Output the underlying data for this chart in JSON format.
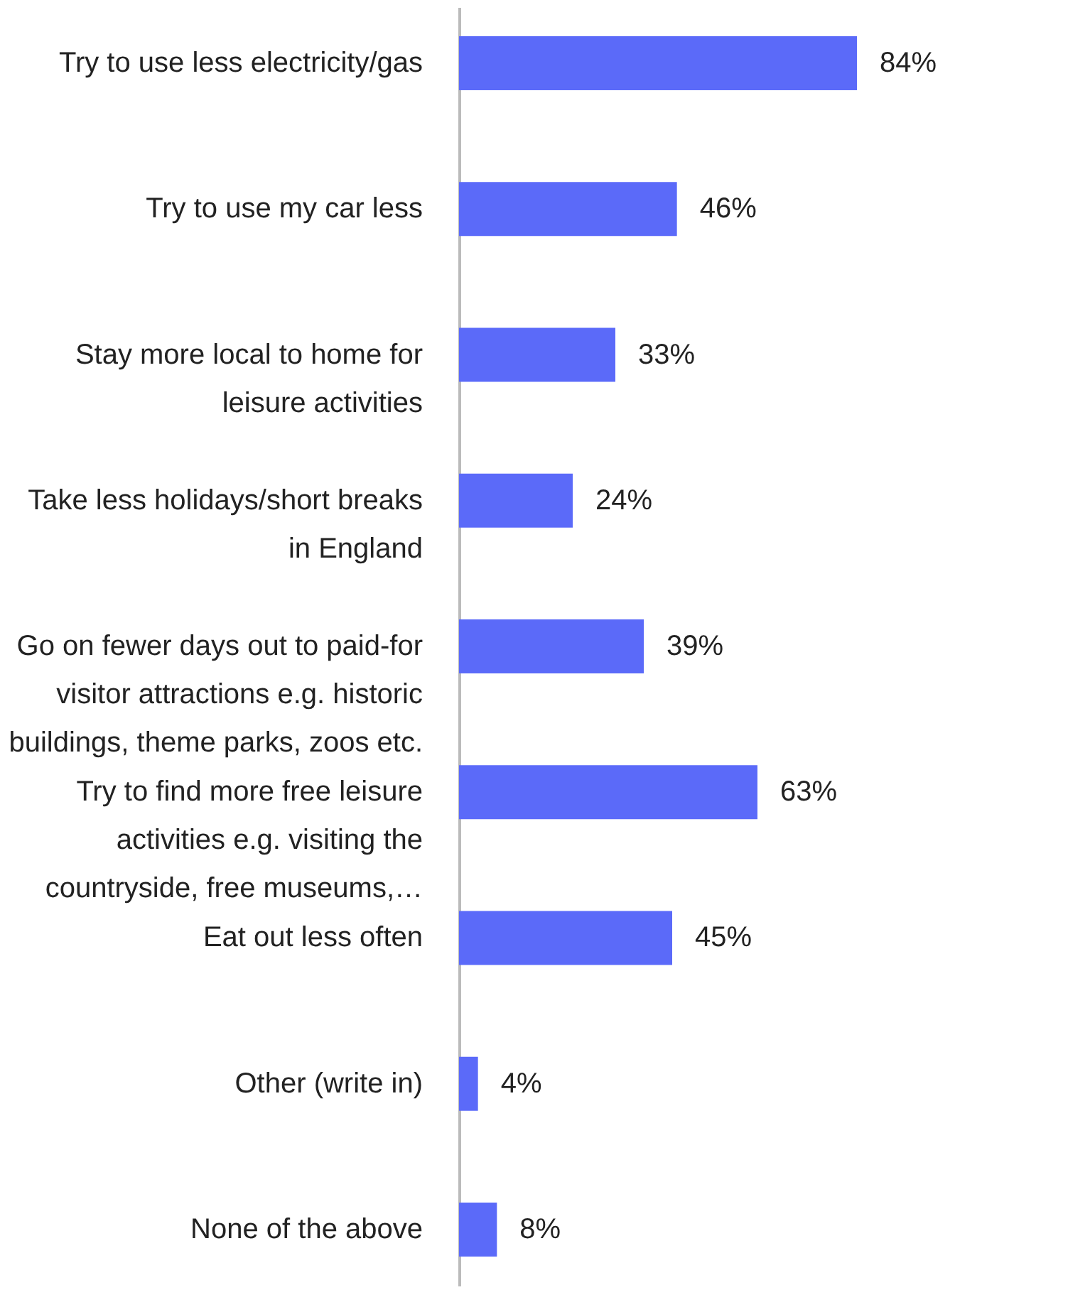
{
  "chart_data": {
    "type": "bar",
    "orientation": "horizontal",
    "categories": [
      "Try to use less electricity/gas",
      "Try to use my car less",
      "Stay more local to home for leisure activities",
      "Take less holidays/short breaks in England",
      "Go on fewer days out to paid-for visitor attractions e.g. historic buildings, theme parks, zoos etc.",
      "Try to find more free leisure activities e.g. visiting the countryside, free museums,…",
      "Eat out less often",
      "Other (write in)",
      "None of the above"
    ],
    "values": [
      84,
      46,
      33,
      24,
      39,
      63,
      45,
      4,
      8
    ],
    "value_labels": [
      "84%",
      "46%",
      "33%",
      "24%",
      "39%",
      "63%",
      "45%",
      "4%",
      "8%"
    ],
    "color": "#5b6af9",
    "grid": false
  }
}
